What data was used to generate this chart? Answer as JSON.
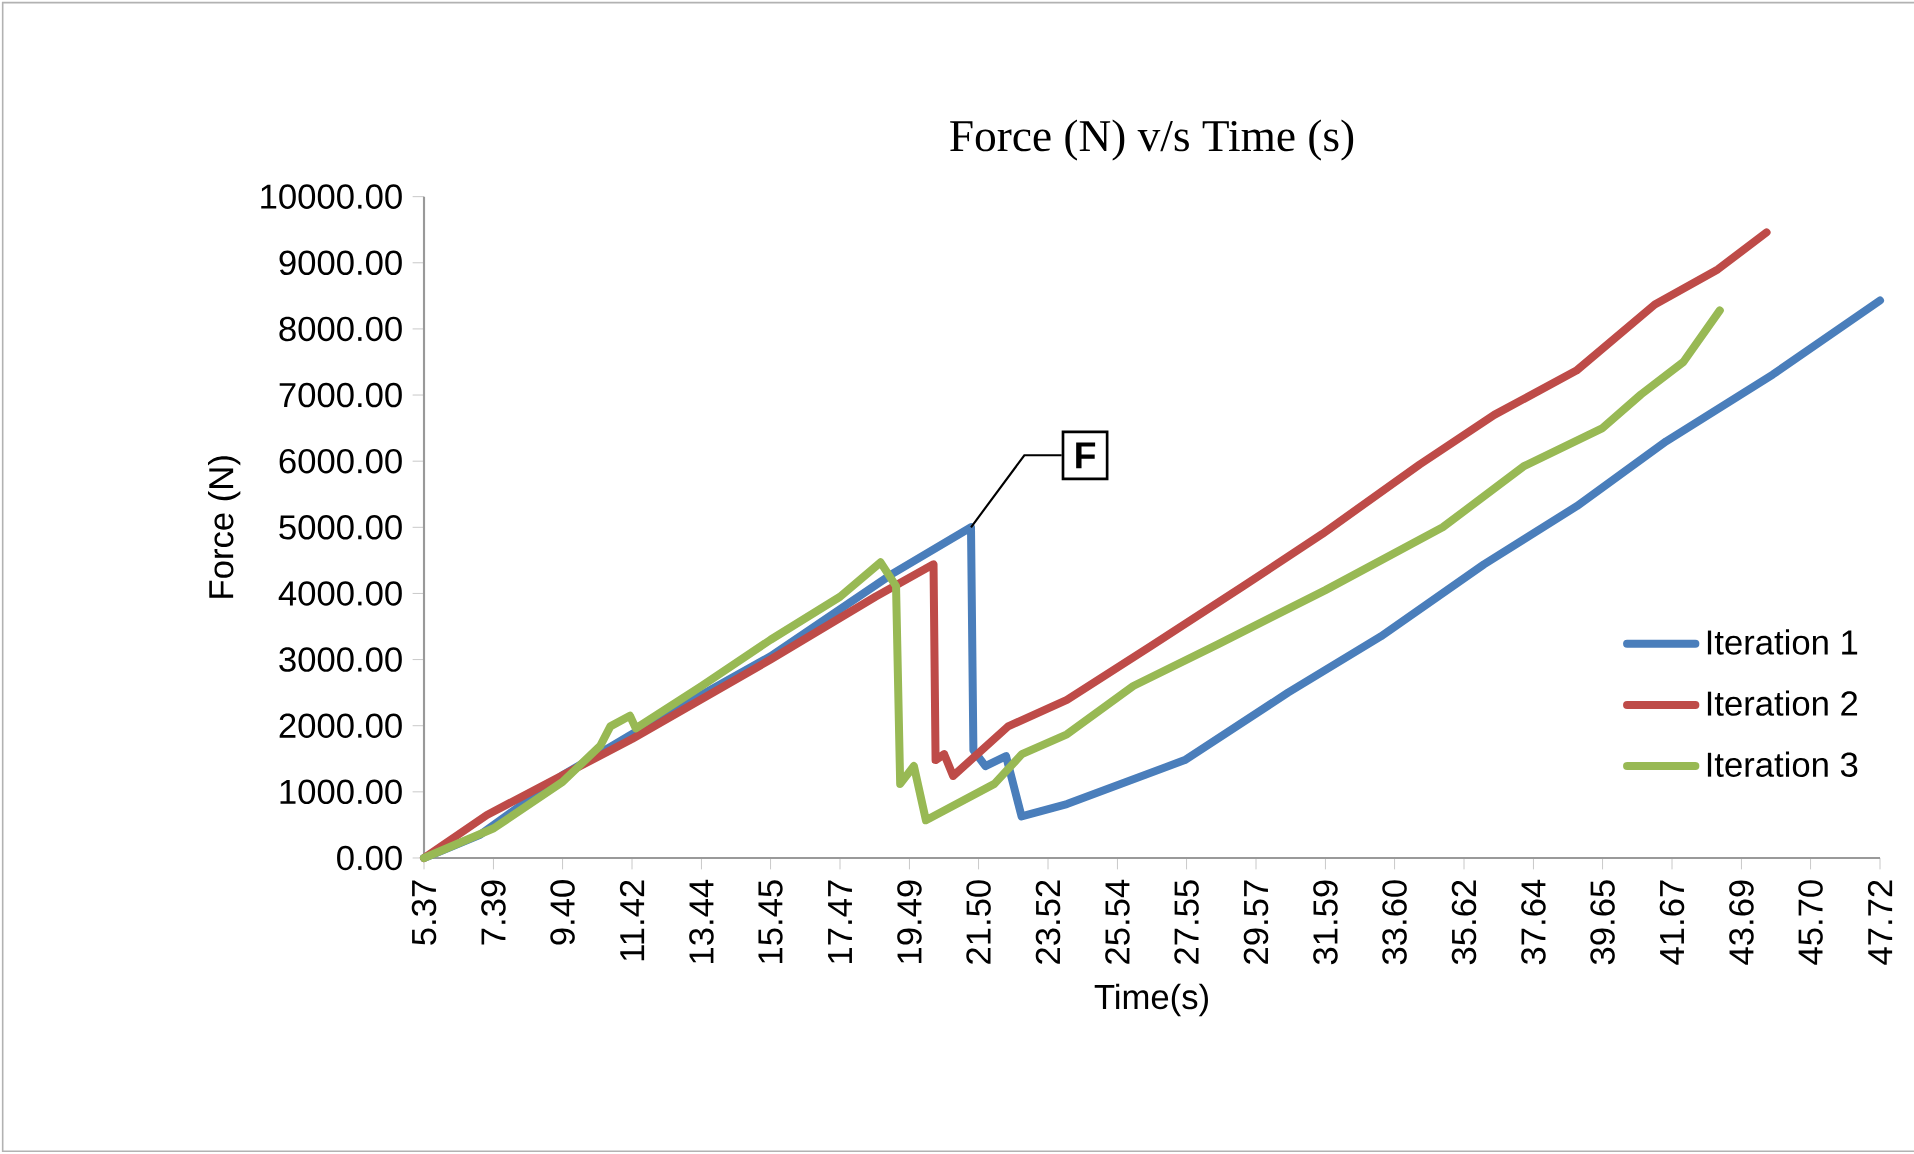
{
  "chart_data": {
    "type": "line",
    "title": "Force (N) v/s Time (s)",
    "xlabel": "Time(s)",
    "ylabel": "Force (N)",
    "xlim": [
      5.37,
      47.72
    ],
    "ylim": [
      0,
      10000
    ],
    "xticks": [
      5.37,
      7.39,
      {
        "value": 9.4,
        "label": "9.40"
      },
      11.42,
      13.44,
      15.45,
      17.47,
      19.49,
      {
        "value": 21.5,
        "label": "21.50"
      },
      23.52,
      25.54,
      27.55,
      29.57,
      31.59,
      {
        "value": 33.6,
        "label": "33.60"
      },
      35.62,
      37.64,
      39.65,
      41.67,
      43.69,
      {
        "value": 45.7,
        "label": "45.70"
      },
      47.72
    ],
    "yticks": [
      {
        "value": 0,
        "label": "0.00"
      },
      {
        "value": 1000,
        "label": "1000.00"
      },
      {
        "value": 2000,
        "label": "2000.00"
      },
      {
        "value": 3000,
        "label": "3000.00"
      },
      {
        "value": 4000,
        "label": "4000.00"
      },
      {
        "value": 5000,
        "label": "5000.00"
      },
      {
        "value": 6000,
        "label": "6000.00"
      },
      {
        "value": 7000,
        "label": "7000.00"
      },
      {
        "value": 8000,
        "label": "8000.00"
      },
      {
        "value": 9000,
        "label": "9000.00"
      },
      {
        "value": 10000,
        "label": "10000.00"
      }
    ],
    "legend": "right",
    "grid": false,
    "annotations": [
      {
        "text": "F",
        "x": 21.28,
        "y": 5000
      }
    ],
    "series": [
      {
        "name": "Iteration 1",
        "color": "#4a7ebb",
        "x": [
          5.37,
          7.0,
          9.4,
          11.5,
          15.45,
          19.0,
          21.28,
          21.35,
          21.7,
          22.3,
          22.75,
          24.07,
          27.5,
          30.5,
          33.2,
          36.2,
          38.9,
          41.5,
          44.6,
          47.72
        ],
        "values": [
          0,
          350,
          1250,
          1900,
          3050,
          4300,
          5000,
          1630,
          1390,
          1540,
          630,
          815,
          1480,
          2500,
          3350,
          4440,
          5320,
          6300,
          7310,
          8430
        ]
      },
      {
        "name": "Iteration 2",
        "color": "#be4b48",
        "x": [
          5.37,
          7.2,
          9.4,
          11.42,
          15.45,
          18.5,
          20.19,
          20.25,
          20.5,
          20.76,
          22.36,
          24.07,
          26.5,
          29.2,
          31.5,
          34.33,
          36.5,
          38.89,
          41.17,
          43.0,
          44.42
        ],
        "values": [
          0,
          650,
          1250,
          1800,
          3000,
          3950,
          4440,
          1480,
          1570,
          1240,
          1990,
          2390,
          3200,
          4110,
          4900,
          5950,
          6700,
          7370,
          8370,
          8900,
          9460
        ]
      },
      {
        "name": "Iteration 3",
        "color": "#98b954",
        "x": [
          5.37,
          7.4,
          9.4,
          10.5,
          10.79,
          11.36,
          11.53,
          13.44,
          15.45,
          17.47,
          18.65,
          19.1,
          19.22,
          19.62,
          19.97,
          21.96,
          22.76,
          24.07,
          26.0,
          28.46,
          31.59,
          35.0,
          37.35,
          39.65,
          40.77,
          42.0,
          43.06
        ],
        "values": [
          0,
          450,
          1150,
          1700,
          1990,
          2150,
          1960,
          2600,
          3300,
          3950,
          4470,
          4110,
          1120,
          1390,
          570,
          1120,
          1570,
          1870,
          2600,
          3230,
          4050,
          5000,
          5920,
          6500,
          7010,
          7500,
          8280
        ]
      }
    ]
  }
}
